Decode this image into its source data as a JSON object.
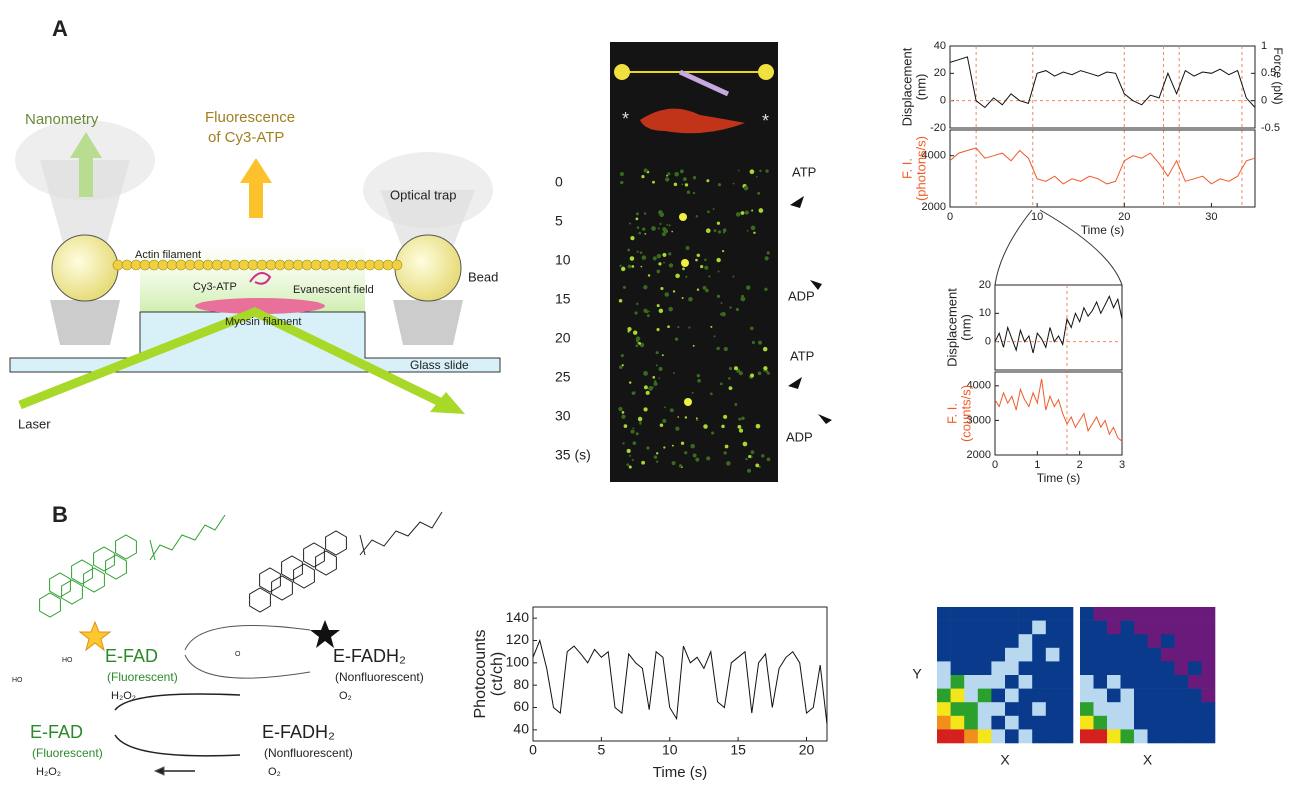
{
  "panel_labels": [
    "A",
    "B"
  ],
  "schematic": {
    "nanometry": "Nanometry",
    "fluorescence": [
      "Fluorescence",
      "of Cy3-ATP"
    ],
    "optical_trap": "Optical trap",
    "actin": "Actin filament",
    "bead": "Bead",
    "cy3": "Cy3-ATP",
    "evanescent": "Evanescent field",
    "myosin": "Myosin filament",
    "glass": "Glass slide",
    "laser": "Laser"
  },
  "kymograph": {
    "time_labels": [
      "0",
      "5",
      "10",
      "15",
      "20",
      "25",
      "30",
      "35 (s)"
    ],
    "markers": [
      "ATP",
      "ADP",
      "ATP",
      "ADP"
    ],
    "asterisks": [
      "*",
      "*"
    ]
  },
  "cycle": {
    "upper": {
      "left": [
        "E-FAD",
        "(Fluorescent)",
        "H₂O₂"
      ],
      "right": [
        "E-FADH₂",
        "(Nonfluorescent)",
        "O₂"
      ]
    },
    "lower": {
      "left": [
        "E-FAD",
        "(Fluorescent)",
        "H₂O₂"
      ],
      "right": [
        "E-FADH₂",
        "(Nonfluorescent)",
        "O₂"
      ]
    },
    "molecule_labels": [
      "HO",
      "HO",
      "O"
    ]
  },
  "chart_data": [
    {
      "type": "line",
      "ylabel": [
        "Displacement",
        "(nm)"
      ],
      "y2label": [
        "Force (pN)"
      ],
      "xlim": [
        0,
        35
      ],
      "ylim": [
        -20,
        40
      ],
      "yticks": [
        -20,
        0,
        20,
        40
      ],
      "y2lim": [
        -0.5,
        1
      ],
      "y2ticks": [
        -0.5,
        0,
        0.5,
        1
      ],
      "event_times": [
        3,
        9.5,
        20,
        24.5,
        26.3,
        33.5
      ],
      "x": [
        0,
        1,
        2,
        3,
        4,
        5,
        6,
        7,
        8,
        9,
        10,
        11,
        12,
        13,
        14,
        15,
        16,
        17,
        18,
        19,
        20,
        21,
        22,
        23,
        24,
        25,
        26,
        27,
        28,
        29,
        30,
        31,
        32,
        33,
        34,
        35
      ],
      "series": [
        {
          "color": "#111111",
          "values": [
            28,
            30,
            32,
            0,
            -5,
            2,
            -3,
            5,
            0,
            -2,
            20,
            22,
            18,
            21,
            19,
            22,
            20,
            18,
            21,
            20,
            5,
            0,
            -3,
            4,
            2,
            20,
            5,
            22,
            18,
            21,
            20,
            23,
            19,
            22,
            2,
            -5
          ]
        }
      ]
    },
    {
      "type": "line",
      "ylabel": [
        "F. I.",
        "(photons/s)"
      ],
      "xlabel": "Time (s)",
      "xlim": [
        0,
        35
      ],
      "xticks": [
        0,
        10,
        20,
        30
      ],
      "ylim": [
        2000,
        5000
      ],
      "yticks": [
        2000,
        4000
      ],
      "x": [
        0,
        1,
        2,
        3,
        4,
        5,
        6,
        7,
        8,
        9,
        10,
        11,
        12,
        13,
        14,
        15,
        16,
        17,
        18,
        19,
        20,
        21,
        22,
        23,
        24,
        25,
        26,
        27,
        28,
        29,
        30,
        31,
        32,
        33,
        34,
        35
      ],
      "series": [
        {
          "color": "#f05a28",
          "values": [
            3800,
            4100,
            4200,
            4300,
            3900,
            4000,
            4100,
            3800,
            4200,
            3900,
            3100,
            3000,
            3200,
            2900,
            3100,
            3000,
            3200,
            3100,
            2900,
            3000,
            3800,
            4000,
            3900,
            4100,
            3700,
            3200,
            3800,
            3000,
            3100,
            3200,
            2900,
            3100,
            3000,
            3200,
            3800,
            3900
          ]
        }
      ]
    },
    {
      "type": "line",
      "ylabel": [
        "Displacement",
        "(nm)"
      ],
      "xlim": [
        0,
        3
      ],
      "ylim": [
        -10,
        20
      ],
      "yticks": [
        0,
        10,
        20
      ],
      "event_times": [
        1.7
      ],
      "x": [
        0,
        0.1,
        0.2,
        0.3,
        0.4,
        0.5,
        0.6,
        0.7,
        0.8,
        0.9,
        1,
        1.1,
        1.2,
        1.3,
        1.4,
        1.5,
        1.6,
        1.7,
        1.8,
        1.9,
        2,
        2.1,
        2.2,
        2.3,
        2.4,
        2.5,
        2.6,
        2.7,
        2.8,
        2.9,
        3
      ],
      "series": [
        {
          "color": "#111111",
          "values": [
            0,
            3,
            -2,
            5,
            1,
            -3,
            4,
            0,
            2,
            -4,
            3,
            1,
            -2,
            5,
            0,
            2,
            -1,
            8,
            5,
            10,
            7,
            12,
            9,
            11,
            14,
            10,
            13,
            16,
            12,
            15,
            8
          ]
        }
      ]
    },
    {
      "type": "line",
      "ylabel": [
        "F. I.",
        "(counts/s)"
      ],
      "xlabel": "Time (s)",
      "xlim": [
        0,
        3
      ],
      "xticks": [
        0,
        1,
        2,
        3
      ],
      "ylim": [
        2000,
        4400
      ],
      "yticks": [
        2000,
        3000,
        4000
      ],
      "x": [
        0,
        0.1,
        0.2,
        0.3,
        0.4,
        0.5,
        0.6,
        0.7,
        0.8,
        0.9,
        1,
        1.1,
        1.2,
        1.3,
        1.4,
        1.5,
        1.6,
        1.7,
        1.8,
        1.9,
        2,
        2.1,
        2.2,
        2.3,
        2.4,
        2.5,
        2.6,
        2.7,
        2.8,
        2.9,
        3
      ],
      "series": [
        {
          "color": "#f05a28",
          "values": [
            3600,
            3400,
            3800,
            3500,
            3700,
            3300,
            3900,
            3600,
            3400,
            3800,
            3500,
            4200,
            3300,
            3700,
            3400,
            3600,
            3200,
            2900,
            3100,
            2800,
            3000,
            3200,
            2700,
            2900,
            3100,
            2800,
            3000,
            2600,
            2800,
            2500,
            2400
          ]
        }
      ]
    },
    {
      "type": "line",
      "ylabel": [
        "Photocounts",
        "(ct/ch)"
      ],
      "xlabel": "Time (s)",
      "xlim": [
        0,
        21.5
      ],
      "xticks": [
        0,
        5,
        10,
        15,
        20
      ],
      "ylim": [
        30,
        150
      ],
      "yticks": [
        40,
        60,
        80,
        100,
        120,
        140
      ],
      "x": [
        0,
        0.5,
        1,
        1.5,
        2,
        2.5,
        3,
        3.5,
        4,
        4.5,
        5,
        5.5,
        6,
        6.5,
        7,
        7.5,
        8,
        8.5,
        9,
        9.5,
        10,
        10.5,
        11,
        11.5,
        12,
        12.5,
        13,
        13.5,
        14,
        14.5,
        15,
        15.5,
        16,
        16.5,
        17,
        17.5,
        18,
        18.5,
        19,
        19.5,
        20,
        20.5,
        21,
        21.5
      ],
      "series": [
        {
          "color": "#111111",
          "values": [
            105,
            120,
            95,
            60,
            55,
            110,
            115,
            108,
            100,
            112,
            105,
            110,
            60,
            55,
            108,
            100,
            95,
            58,
            110,
            105,
            60,
            50,
            115,
            100,
            105,
            95,
            110,
            65,
            60,
            100,
            105,
            110,
            55,
            100,
            108,
            60,
            95,
            105,
            110,
            100,
            55,
            60,
            98,
            45
          ]
        }
      ]
    },
    {
      "type": "heatmap",
      "ylabel": "Y",
      "xlabel": "X",
      "colors": [
        "#0a3a8c",
        "#b8d8f0",
        "#2ca02c",
        "#f5e51b",
        "#f28e1c",
        "#d62020"
      ],
      "values": [
        [
          0,
          0,
          0,
          0,
          0,
          0,
          0,
          0,
          0,
          0
        ],
        [
          0,
          0,
          0,
          0,
          0,
          0,
          0,
          1,
          0,
          0
        ],
        [
          0,
          0,
          0,
          0,
          0,
          0,
          1,
          0,
          0,
          0
        ],
        [
          0,
          0,
          0,
          0,
          0,
          1,
          1,
          0,
          1,
          0
        ],
        [
          1,
          0,
          0,
          0,
          1,
          1,
          0,
          0,
          0,
          0
        ],
        [
          1,
          2,
          1,
          1,
          1,
          0,
          1,
          0,
          0,
          0
        ],
        [
          2,
          3,
          1,
          2,
          0,
          1,
          0,
          0,
          0,
          0
        ],
        [
          3,
          2,
          2,
          1,
          1,
          0,
          0,
          1,
          0,
          0
        ],
        [
          4,
          3,
          2,
          1,
          0,
          1,
          0,
          0,
          0,
          0
        ],
        [
          5,
          5,
          4,
          3,
          1,
          0,
          1,
          0,
          0,
          0
        ]
      ]
    },
    {
      "type": "heatmap",
      "xlabel": "X",
      "colors": [
        "#6a1a7a",
        "#0a3a8c",
        "#b8d8f0",
        "#2ca02c",
        "#f5e51b",
        "#d62020"
      ],
      "values": [
        [
          1,
          0,
          0,
          0,
          0,
          0,
          0,
          0,
          0,
          0
        ],
        [
          1,
          1,
          0,
          1,
          0,
          0,
          0,
          0,
          0,
          0
        ],
        [
          1,
          1,
          1,
          1,
          1,
          0,
          1,
          0,
          0,
          0
        ],
        [
          1,
          1,
          1,
          1,
          1,
          1,
          0,
          0,
          0,
          0
        ],
        [
          1,
          1,
          1,
          1,
          1,
          1,
          1,
          0,
          1,
          0
        ],
        [
          2,
          1,
          2,
          1,
          1,
          1,
          1,
          1,
          0,
          0
        ],
        [
          2,
          2,
          1,
          2,
          1,
          1,
          1,
          1,
          1,
          0
        ],
        [
          3,
          2,
          2,
          2,
          1,
          1,
          1,
          1,
          1,
          1
        ],
        [
          4,
          3,
          2,
          2,
          1,
          1,
          1,
          1,
          1,
          1
        ],
        [
          5,
          5,
          4,
          3,
          2,
          1,
          1,
          1,
          1,
          1
        ]
      ]
    }
  ]
}
